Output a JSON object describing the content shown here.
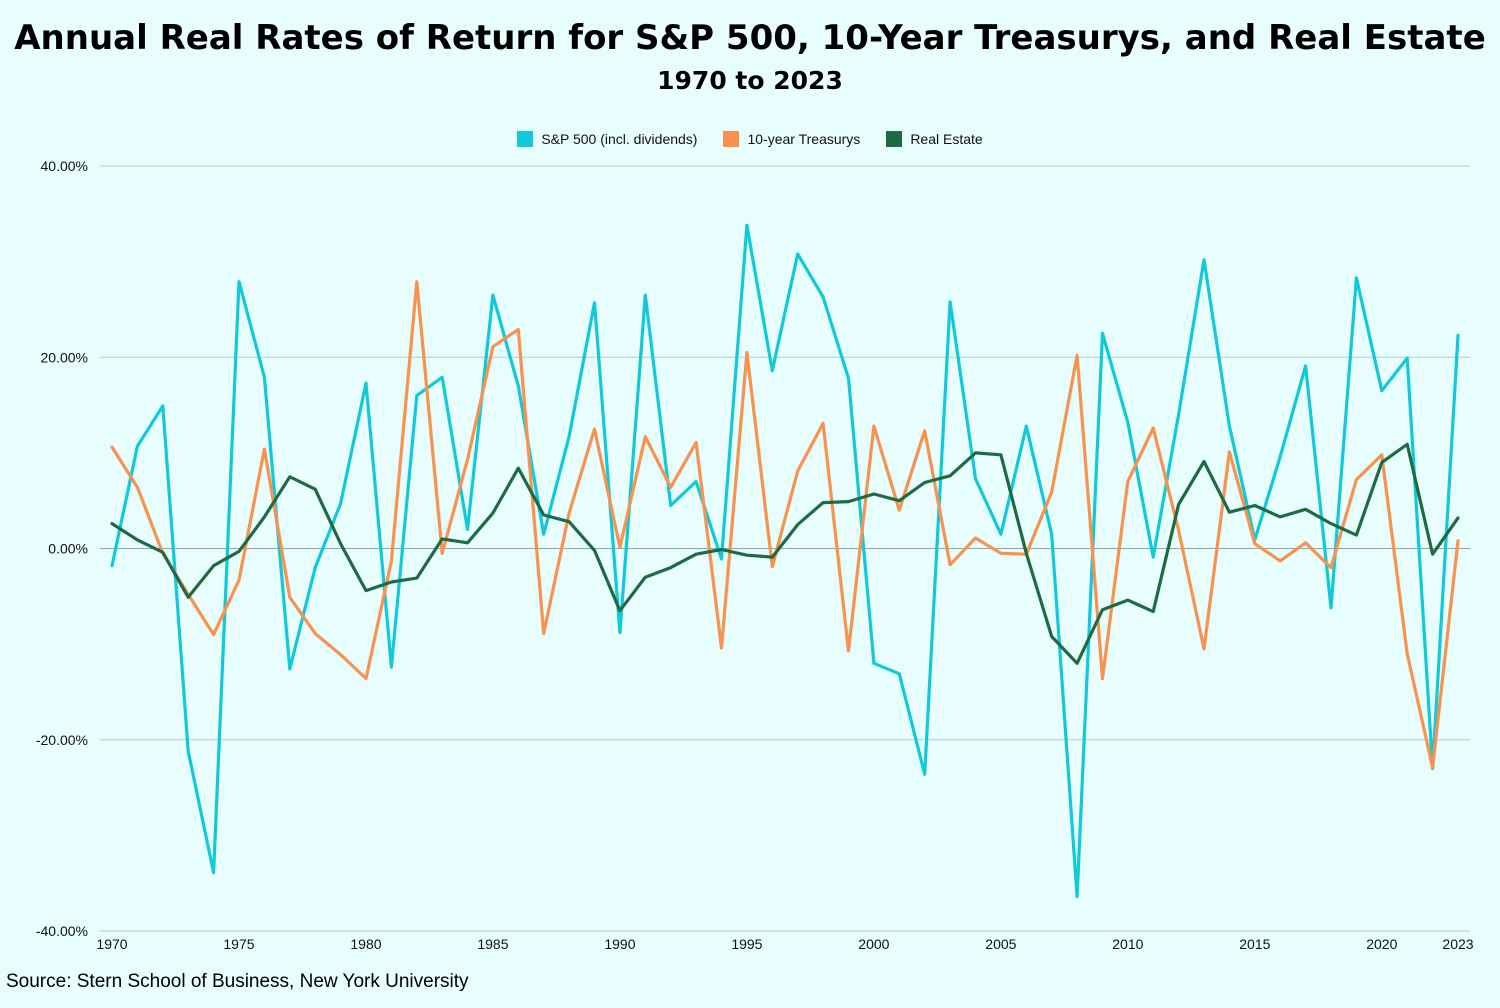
{
  "chart_data": {
    "type": "line",
    "title": "Annual Real Rates of Return for S&P 500, 10-Year Treasurys, and Real Estate",
    "subtitle": "1970 to 2023",
    "ylim": [
      -40,
      40
    ],
    "yticks": [
      "40.00%",
      "20.00%",
      "0.00%",
      "-20.00%",
      "-40.00%"
    ],
    "ytick_values": [
      40,
      20,
      0,
      -20,
      -40
    ],
    "x": [
      1970,
      1971,
      1972,
      1973,
      1974,
      1975,
      1976,
      1977,
      1978,
      1979,
      1980,
      1981,
      1982,
      1983,
      1984,
      1985,
      1986,
      1987,
      1988,
      1989,
      1990,
      1991,
      1992,
      1993,
      1994,
      1995,
      1996,
      1997,
      1998,
      1999,
      2000,
      2001,
      2002,
      2003,
      2004,
      2005,
      2006,
      2007,
      2008,
      2009,
      2010,
      2011,
      2012,
      2013,
      2014,
      2015,
      2016,
      2017,
      2018,
      2019,
      2020,
      2021,
      2022,
      2023
    ],
    "xtick_labels": [
      "1970",
      "1975",
      "1980",
      "1985",
      "1990",
      "1995",
      "2000",
      "2005",
      "2010",
      "2015",
      "2020",
      "2023"
    ],
    "xtick_values": [
      1970,
      1975,
      1980,
      1985,
      1990,
      1995,
      2000,
      2005,
      2010,
      2015,
      2020,
      2023
    ],
    "series": [
      {
        "name": "S&P 500 (incl. dividends)",
        "color": "#12c9d8",
        "values": [
          -1.8,
          10.7,
          14.9,
          -21.2,
          -33.9,
          27.9,
          17.9,
          -12.6,
          -2.0,
          4.7,
          17.3,
          -12.4,
          16.0,
          17.9,
          2.0,
          26.5,
          17.0,
          1.5,
          11.7,
          25.7,
          -8.8,
          26.5,
          4.5,
          7.0,
          -1.1,
          33.8,
          18.6,
          30.8,
          26.3,
          17.8,
          -12.0,
          -13.1,
          -23.6,
          25.8,
          7.3,
          1.5,
          12.8,
          1.5,
          -36.4,
          22.5,
          13.2,
          -0.9,
          14.0,
          30.2,
          12.8,
          0.9,
          9.6,
          19.1,
          -6.2,
          28.3,
          16.5,
          19.9,
          -23.0,
          22.3
        ]
      },
      {
        "name": "10-year Treasurys",
        "color": "#f7924f",
        "values": [
          10.6,
          6.4,
          -0.5,
          -4.8,
          -9.0,
          -3.3,
          10.4,
          -5.1,
          -8.9,
          -11.1,
          -13.6,
          -1.3,
          27.9,
          -0.5,
          9.3,
          21.1,
          22.9,
          -8.9,
          3.7,
          12.5,
          0.1,
          11.7,
          6.4,
          11.1,
          -10.4,
          20.5,
          -1.9,
          8.1,
          13.1,
          -10.7,
          12.8,
          4.0,
          12.3,
          -1.7,
          1.1,
          -0.5,
          -0.6,
          5.9,
          20.2,
          -13.6,
          7.0,
          12.6,
          1.9,
          -10.5,
          10.1,
          0.5,
          -1.3,
          0.6,
          -2.0,
          7.2,
          9.8,
          -11.0,
          -22.9,
          0.8
        ]
      },
      {
        "name": "Real Estate",
        "color": "#1e6b43",
        "values": [
          2.6,
          0.9,
          -0.4,
          -5.1,
          -1.8,
          -0.3,
          3.3,
          7.5,
          6.2,
          0.5,
          -4.4,
          -3.5,
          -3.1,
          1.0,
          0.6,
          3.7,
          8.4,
          3.5,
          2.8,
          -0.2,
          -6.5,
          -3.0,
          -2.0,
          -0.6,
          -0.1,
          -0.7,
          -0.9,
          2.5,
          4.8,
          4.9,
          5.7,
          5.0,
          6.9,
          7.6,
          10.0,
          9.8,
          -0.5,
          -9.2,
          -12.0,
          -6.4,
          -5.4,
          -6.6,
          4.6,
          9.1,
          3.8,
          4.5,
          3.3,
          4.1,
          2.6,
          1.4,
          9.0,
          10.9,
          -0.6,
          3.2
        ]
      }
    ]
  },
  "footer": {
    "source": "Source: Stern School of Business, New York University"
  }
}
